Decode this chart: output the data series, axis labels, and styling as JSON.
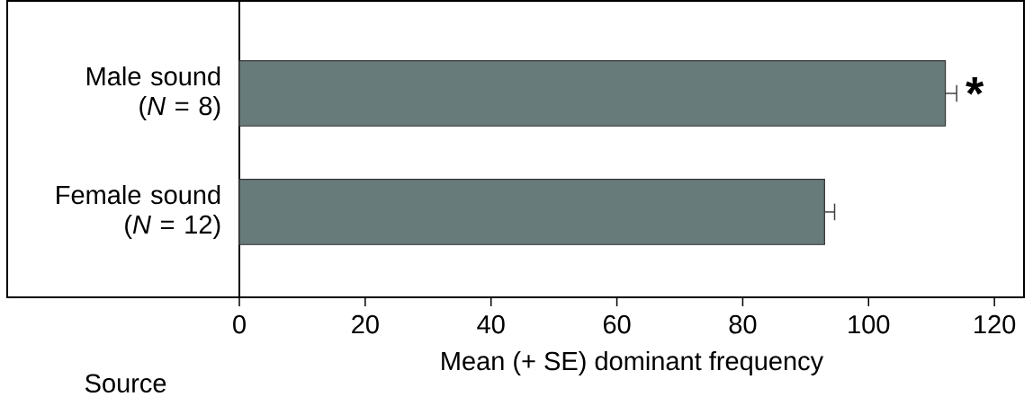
{
  "chart_data": {
    "type": "bar",
    "orientation": "horizontal",
    "categories": [
      "Male sound (*N* = 8)",
      "Female sound (*N* = 12)"
    ],
    "values": [
      112.2,
      93.0
    ],
    "errors": [
      [
        112.2,
        114.0
      ],
      [
        93.0,
        94.6
      ]
    ],
    "color": "#687b7b",
    "xlim": [
      0,
      124.7
    ],
    "xticks": [
      0,
      20,
      40,
      60,
      80,
      100,
      120
    ],
    "xlabel": "Mean (+ SE) dominant frequency",
    "ylabel": "Source",
    "annotations": [
      {
        "text": "*",
        "x": 114.0,
        "y": "Male sound (*N* = 8)"
      }
    ]
  }
}
